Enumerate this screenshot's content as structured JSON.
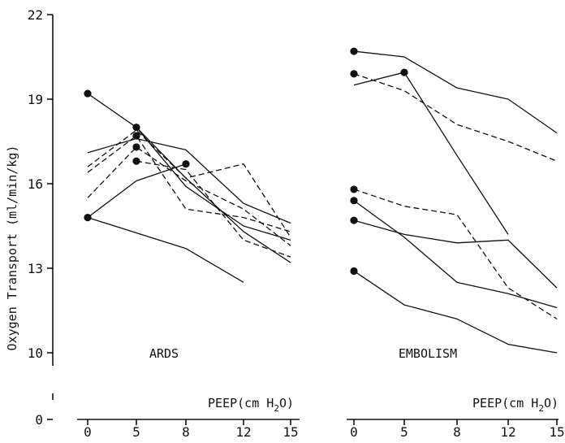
{
  "chart_data": {
    "type": "line",
    "ylabel": "Oxygen Transport (ml/min/kg)",
    "y_ticks": [
      "22",
      "19",
      "16",
      "13",
      "10",
      "0"
    ],
    "y_values": [
      22,
      19,
      16,
      13,
      10,
      0
    ],
    "ylim": [
      0,
      22
    ],
    "y_axis_break": [
      7,
      10
    ],
    "grid": false,
    "line_styles": [
      "solid",
      "dashed"
    ],
    "marker": "filled-circle at first point of each series",
    "panels": [
      {
        "label": "ARDS",
        "xlabel": "PEEP(cm H2O)",
        "x_ticks": [
          "0",
          "5",
          "8",
          "12",
          "15"
        ],
        "x_values": [
          0,
          5,
          8,
          12,
          15
        ],
        "series": [
          {
            "style": "solid",
            "points": [
              [
                0,
                19.2
              ],
              [
                5,
                18.0
              ],
              [
                8,
                15.9
              ],
              [
                12,
                14.5
              ],
              [
                15,
                14.0
              ]
            ]
          },
          {
            "style": "solid",
            "points": [
              [
                5,
                18.0
              ],
              [
                8,
                16.2
              ],
              [
                12,
                14.3
              ],
              [
                15,
                13.2
              ]
            ]
          },
          {
            "style": "solid",
            "points": [
              [
                0,
                17.1
              ],
              [
                5,
                17.6
              ],
              [
                8,
                17.2
              ],
              [
                12,
                15.3
              ],
              [
                15,
                14.6
              ]
            ]
          },
          {
            "style": "dashed",
            "points": [
              [
                0,
                16.6
              ],
              [
                5,
                17.9
              ],
              [
                8,
                16.2
              ],
              [
                12,
                16.7
              ],
              [
                15,
                14.1
              ]
            ]
          },
          {
            "style": "dashed",
            "points": [
              [
                0,
                16.4
              ],
              [
                5,
                17.7
              ],
              [
                8,
                15.1
              ],
              [
                12,
                14.8
              ],
              [
                15,
                14.3
              ]
            ]
          },
          {
            "style": "dashed",
            "points": [
              [
                0,
                15.5
              ],
              [
                5,
                17.3
              ],
              [
                8,
                16.1
              ],
              [
                12,
                15.1
              ],
              [
                15,
                13.8
              ]
            ]
          },
          {
            "style": "dashed",
            "points": [
              [
                5,
                16.8
              ],
              [
                8,
                16.5
              ],
              [
                12,
                14.0
              ],
              [
                15,
                13.4
              ]
            ]
          },
          {
            "style": "solid",
            "points": [
              [
                0,
                14.8
              ],
              [
                5,
                16.1
              ],
              [
                8,
                16.7
              ]
            ]
          },
          {
            "style": "solid",
            "points": [
              [
                0,
                14.8
              ],
              [
                8,
                13.7
              ],
              [
                12,
                12.5
              ]
            ]
          }
        ],
        "markers": [
          [
            0,
            19.2
          ],
          [
            5,
            18.0
          ],
          [
            5,
            17.7
          ],
          [
            5,
            17.3
          ],
          [
            5,
            16.8
          ],
          [
            8,
            16.7
          ],
          [
            0,
            14.8
          ]
        ]
      },
      {
        "label": "EMBOLISM",
        "xlabel": "PEEP(cm H2O)",
        "x_ticks": [
          "0",
          "5",
          "8",
          "12",
          "15"
        ],
        "x_values": [
          0,
          5,
          8,
          12,
          15
        ],
        "series": [
          {
            "style": "solid",
            "points": [
              [
                0,
                20.7
              ],
              [
                5,
                20.5
              ],
              [
                8,
                19.4
              ],
              [
                12,
                19.0
              ],
              [
                15,
                17.8
              ]
            ]
          },
          {
            "style": "dashed",
            "points": [
              [
                0,
                19.9
              ],
              [
                5,
                19.3
              ],
              [
                8,
                18.1
              ],
              [
                12,
                17.5
              ],
              [
                15,
                16.8
              ]
            ]
          },
          {
            "style": "solid",
            "points": [
              [
                0,
                19.5
              ],
              [
                5,
                19.95
              ],
              [
                8,
                17.0
              ],
              [
                12,
                14.2
              ]
            ]
          },
          {
            "style": "dashed",
            "points": [
              [
                0,
                15.8
              ],
              [
                5,
                15.2
              ],
              [
                8,
                14.9
              ],
              [
                12,
                12.3
              ],
              [
                15,
                11.2
              ]
            ]
          },
          {
            "style": "solid",
            "points": [
              [
                0,
                15.4
              ],
              [
                5,
                14.1
              ],
              [
                8,
                12.5
              ],
              [
                12,
                12.1
              ],
              [
                15,
                11.6
              ]
            ]
          },
          {
            "style": "solid",
            "points": [
              [
                0,
                14.7
              ],
              [
                5,
                14.2
              ],
              [
                8,
                13.9
              ],
              [
                12,
                14.0
              ],
              [
                15,
                12.3
              ]
            ]
          },
          {
            "style": "solid",
            "points": [
              [
                0,
                12.9
              ],
              [
                5,
                11.7
              ],
              [
                8,
                11.2
              ],
              [
                12,
                10.3
              ],
              [
                15,
                10.0
              ]
            ]
          }
        ],
        "markers": [
          [
            0,
            20.7
          ],
          [
            0,
            19.9
          ],
          [
            5,
            19.95
          ],
          [
            0,
            15.8
          ],
          [
            0,
            15.4
          ],
          [
            0,
            14.7
          ],
          [
            0,
            12.9
          ]
        ]
      }
    ]
  }
}
